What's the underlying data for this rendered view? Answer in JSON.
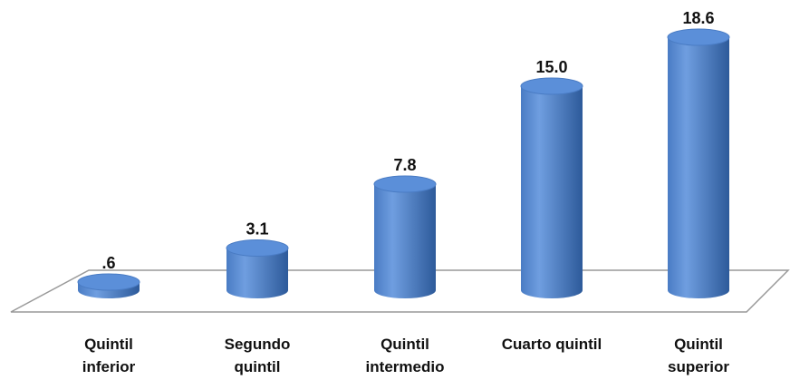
{
  "chart_data": {
    "type": "bar",
    "style": "3d-cylinder",
    "categories": [
      [
        "Quintil",
        "inferior"
      ],
      [
        "Segundo",
        "quintil"
      ],
      [
        "Quintil",
        "intermedio"
      ],
      [
        "Cuarto quintil"
      ],
      [
        "Quintil",
        "superior"
      ]
    ],
    "values": [
      0.6,
      3.1,
      7.8,
      15.0,
      18.6
    ],
    "value_labels": [
      ".6",
      "3.1",
      "7.8",
      "15.0",
      "18.6"
    ],
    "title": "",
    "xlabel": "",
    "ylabel": "",
    "ylim": [
      0,
      20
    ],
    "grid": false,
    "legend": "none",
    "colors": {
      "bar_light": "#6f9ee0",
      "bar_mid": "#4a7cc4",
      "bar_dark": "#2d5a9a",
      "bar_top": "#5b8fd9",
      "floor_stroke": "#999999"
    }
  }
}
